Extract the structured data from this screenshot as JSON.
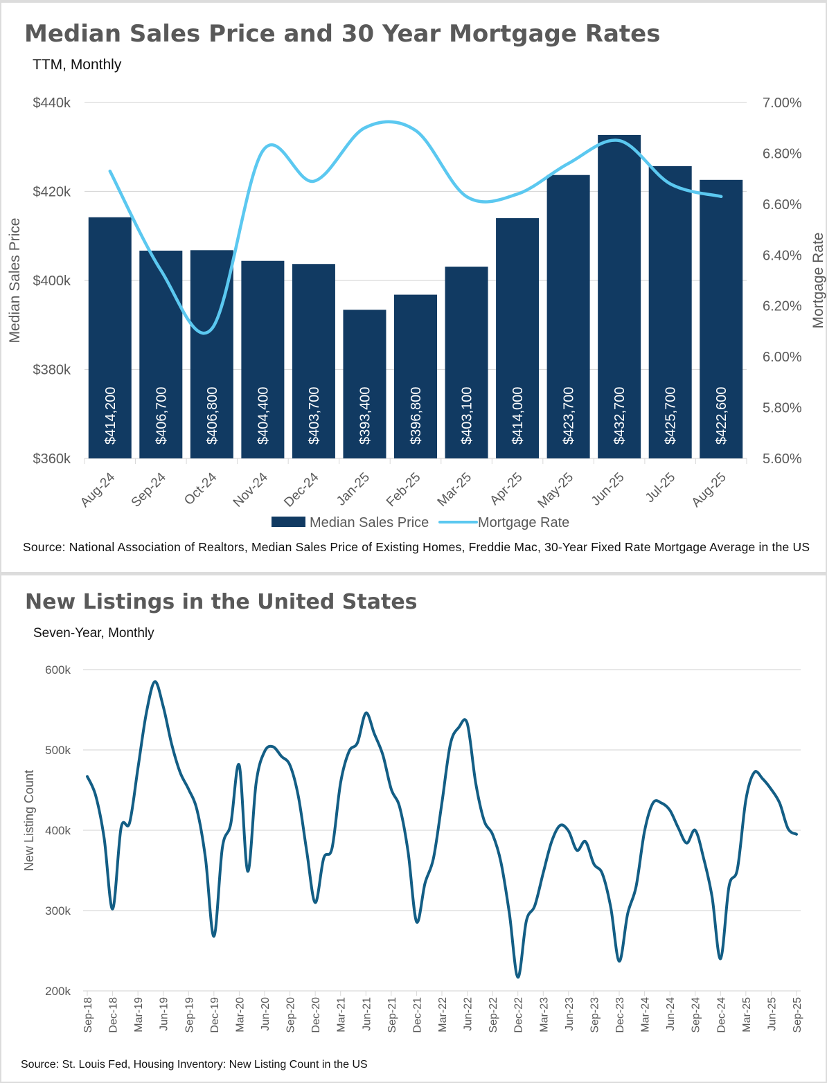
{
  "chart_data": [
    {
      "type": "bar+line",
      "title": "Median Sales Price and 30 Year Mortgage Rates",
      "subtitle": "TTM, Monthly",
      "categories": [
        "Aug-24",
        "Sep-24",
        "Oct-24",
        "Nov-24",
        "Dec-24",
        "Jan-25",
        "Feb-25",
        "Mar-25",
        "Apr-25",
        "May-25",
        "Jun-25",
        "Jul-25",
        "Aug-25"
      ],
      "series": [
        {
          "name": "Median Sales Price",
          "axis": "left",
          "kind": "bar",
          "color": "#113A62",
          "values": [
            414200,
            406700,
            406800,
            404400,
            403700,
            393400,
            396800,
            403100,
            414000,
            423700,
            432700,
            425700,
            422600
          ],
          "labels": [
            "$414,200",
            "$406,700",
            "$406,800",
            "$404,400",
            "$403,700",
            "$393,400",
            "$396,800",
            "$403,100",
            "$414,000",
            "$423,700",
            "$432,700",
            "$425,700",
            "$422,600"
          ]
        },
        {
          "name": "Mortgage Rate",
          "axis": "right",
          "kind": "line",
          "color": "#5BC8F0",
          "values": [
            6.73,
            6.34,
            6.11,
            6.81,
            6.69,
            6.9,
            6.89,
            6.63,
            6.64,
            6.76,
            6.85,
            6.68,
            6.63
          ]
        }
      ],
      "ylabel": "Median Sales Price",
      "ylim": [
        360000,
        440000
      ],
      "yticks": [
        "$360k",
        "$380k",
        "$400k",
        "$420k",
        "$440k"
      ],
      "y2label": "Mortgage Rate",
      "y2lim": [
        5.6,
        7.0
      ],
      "y2ticks": [
        "5.60%",
        "5.80%",
        "6.00%",
        "6.20%",
        "6.40%",
        "6.60%",
        "6.80%",
        "7.00%"
      ],
      "legend": "bottom",
      "grid": true,
      "source": "Source: National Association of Realtors, Median Sales Price of Existing Homes, Freddie Mac, 30-Year Fixed Rate Mortgage Average in the US"
    },
    {
      "type": "line",
      "title": "New Listings in the United States",
      "subtitle": "Seven-Year, Monthly",
      "ylabel": "New Listing Count",
      "ylim": [
        200000,
        600000
      ],
      "yticks": [
        "200k",
        "300k",
        "400k",
        "500k",
        "600k"
      ],
      "color": "#135E85",
      "x_start": "Sep-18",
      "x_end": "Sep-25",
      "xticks": [
        "Sep-18",
        "Dec-18",
        "Mar-19",
        "Jun-19",
        "Sep-19",
        "Dec-19",
        "Mar-20",
        "Jun-20",
        "Sep-20",
        "Dec-20",
        "Mar-21",
        "Jun-21",
        "Sep-21",
        "Dec-21",
        "Mar-22",
        "Jun-22",
        "Sep-22",
        "Dec-22",
        "Mar-23",
        "Jun-23",
        "Sep-23",
        "Dec-23",
        "Mar-24",
        "Jun-24",
        "Sep-24",
        "Dec-24",
        "Mar-25",
        "Jun-25",
        "Sep-25"
      ],
      "values": [
        467,
        443,
        390,
        302,
        403,
        409,
        477,
        546,
        585,
        554,
        507,
        472,
        451,
        425,
        365,
        268,
        378,
        408,
        481,
        349,
        459,
        498,
        504,
        492,
        481,
        442,
        373,
        310,
        365,
        378,
        459,
        498,
        509,
        546,
        520,
        494,
        451,
        429,
        373,
        286,
        334,
        365,
        434,
        507,
        528,
        533,
        459,
        412,
        395,
        360,
        296,
        217,
        287,
        306,
        347,
        386,
        406,
        399,
        375,
        386,
        358,
        346,
        304,
        237,
        296,
        330,
        399,
        434,
        434,
        425,
        403,
        384,
        400,
        365,
        317,
        240,
        330,
        352,
        438,
        472,
        464,
        451,
        434,
        402,
        395
      ],
      "value_unit": "thousands",
      "grid": true,
      "source": "Source: St. Louis Fed, Housing Inventory: New Listing Count in the US"
    }
  ]
}
